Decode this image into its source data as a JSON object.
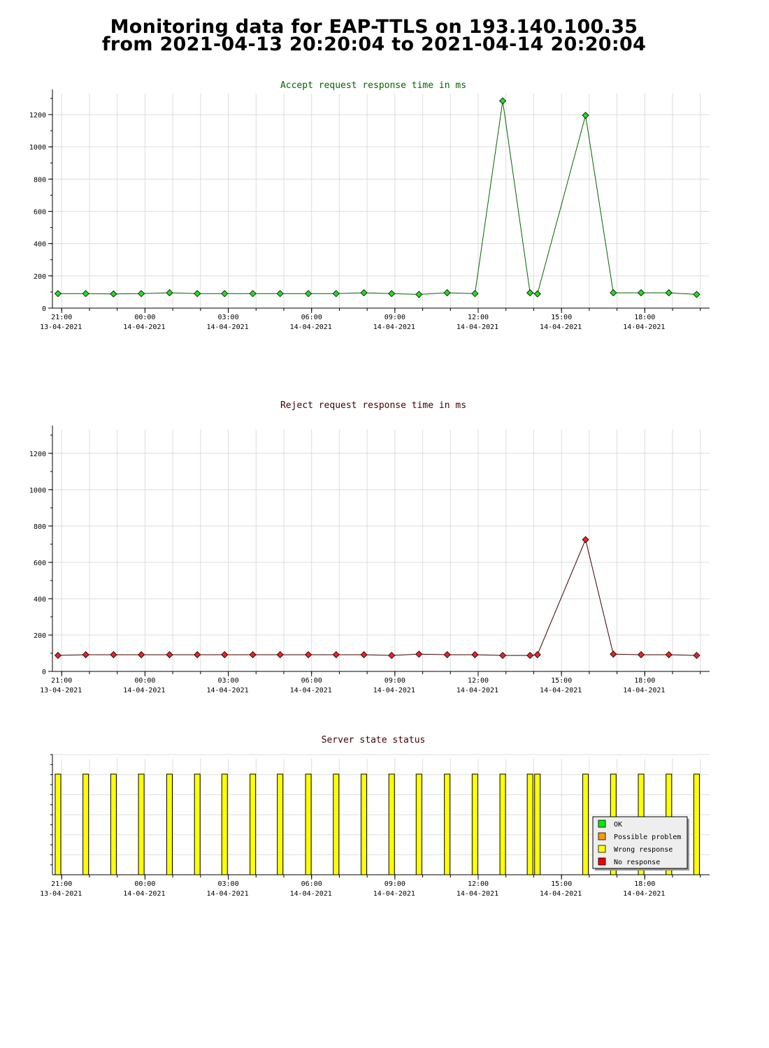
{
  "title": {
    "line1": "Monitoring data for EAP-TTLS on 193.140.100.35",
    "line2": "from 2021-04-13 20:20:04 to 2021-04-14 20:20:04"
  },
  "colors": {
    "accept_title": "#006400",
    "reject_title": "#400000",
    "status_title": "#400000",
    "accept_line": "#006400",
    "accept_marker": "#22dd22",
    "reject_line": "#400000",
    "reject_marker": "#ee2222",
    "grid": "#dddddd",
    "status_ok": "#00ee00",
    "status_possible": "#ff9900",
    "status_wrong": "#ffff00",
    "status_none": "#ee0000"
  },
  "x_ticks": [
    {
      "time": "21:00",
      "date": "13-04-2021"
    },
    {
      "time": "00:00",
      "date": "14-04-2021"
    },
    {
      "time": "03:00",
      "date": "14-04-2021"
    },
    {
      "time": "06:00",
      "date": "14-04-2021"
    },
    {
      "time": "09:00",
      "date": "14-04-2021"
    },
    {
      "time": "12:00",
      "date": "14-04-2021"
    },
    {
      "time": "15:00",
      "date": "14-04-2021"
    },
    {
      "time": "18:00",
      "date": "14-04-2021"
    }
  ],
  "chart_data": [
    {
      "type": "line",
      "title": "Accept request response time in ms",
      "x_range": [
        "2021-04-13 20:40",
        "2021-04-14 20:20"
      ],
      "ylim": [
        0,
        1330
      ],
      "y_ticks": [
        0,
        200,
        400,
        600,
        800,
        1000,
        1200
      ],
      "grid": true,
      "x": [
        "2021-04-13 20:52",
        "2021-04-13 21:52",
        "2021-04-13 22:52",
        "2021-04-13 23:52",
        "2021-04-14 00:53",
        "2021-04-14 01:53",
        "2021-04-14 02:52",
        "2021-04-14 03:53",
        "2021-04-14 04:52",
        "2021-04-14 05:53",
        "2021-04-14 06:53",
        "2021-04-14 07:53",
        "2021-04-14 08:53",
        "2021-04-14 09:52",
        "2021-04-14 10:53",
        "2021-04-14 11:53",
        "2021-04-14 12:53",
        "2021-04-14 13:52",
        "2021-04-14 14:08",
        "2021-04-14 15:52",
        "2021-04-14 16:52",
        "2021-04-14 17:52",
        "2021-04-14 18:52",
        "2021-04-14 19:52"
      ],
      "values": [
        90,
        90,
        88,
        90,
        95,
        90,
        90,
        90,
        90,
        90,
        90,
        95,
        90,
        85,
        95,
        90,
        1285,
        95,
        88,
        1195,
        95,
        95,
        95,
        85
      ]
    },
    {
      "type": "line",
      "title": "Reject request response time in ms",
      "x_range": [
        "2021-04-13 20:40",
        "2021-04-14 20:20"
      ],
      "ylim": [
        0,
        1330
      ],
      "y_ticks": [
        0,
        200,
        400,
        600,
        800,
        1000,
        1200
      ],
      "grid": true,
      "x": [
        "2021-04-13 20:52",
        "2021-04-13 21:52",
        "2021-04-13 22:52",
        "2021-04-13 23:52",
        "2021-04-14 00:53",
        "2021-04-14 01:53",
        "2021-04-14 02:52",
        "2021-04-14 03:53",
        "2021-04-14 04:52",
        "2021-04-14 05:53",
        "2021-04-14 06:53",
        "2021-04-14 07:53",
        "2021-04-14 08:53",
        "2021-04-14 09:52",
        "2021-04-14 10:53",
        "2021-04-14 11:53",
        "2021-04-14 12:53",
        "2021-04-14 13:52",
        "2021-04-14 14:08",
        "2021-04-14 15:52",
        "2021-04-14 16:52",
        "2021-04-14 17:52",
        "2021-04-14 18:52",
        "2021-04-14 19:52"
      ],
      "values": [
        88,
        92,
        92,
        92,
        92,
        92,
        92,
        92,
        92,
        92,
        92,
        92,
        88,
        95,
        92,
        92,
        88,
        88,
        92,
        725,
        95,
        92,
        92,
        88
      ]
    },
    {
      "type": "bar",
      "title": "Server state status",
      "x_range": [
        "2021-04-13 20:40",
        "2021-04-14 20:20"
      ],
      "grid": true,
      "legend_position": "bottom-right",
      "legend": [
        {
          "label": "OK",
          "color": "#00ee00"
        },
        {
          "label": "Possible problem",
          "color": "#ff9900"
        },
        {
          "label": "Wrong response",
          "color": "#ffff00"
        },
        {
          "label": "No response",
          "color": "#ee0000"
        }
      ],
      "x": [
        "2021-04-13 20:52",
        "2021-04-13 21:52",
        "2021-04-13 22:52",
        "2021-04-13 23:52",
        "2021-04-14 00:53",
        "2021-04-14 01:53",
        "2021-04-14 02:52",
        "2021-04-14 03:53",
        "2021-04-14 04:52",
        "2021-04-14 05:53",
        "2021-04-14 06:53",
        "2021-04-14 07:53",
        "2021-04-14 08:53",
        "2021-04-14 09:52",
        "2021-04-14 10:53",
        "2021-04-14 11:53",
        "2021-04-14 12:53",
        "2021-04-14 13:52",
        "2021-04-14 14:08",
        "2021-04-14 15:52",
        "2021-04-14 16:52",
        "2021-04-14 17:52",
        "2021-04-14 18:52",
        "2021-04-14 19:52"
      ],
      "values": [
        "Wrong response",
        "Wrong response",
        "Wrong response",
        "Wrong response",
        "Wrong response",
        "Wrong response",
        "Wrong response",
        "Wrong response",
        "Wrong response",
        "Wrong response",
        "Wrong response",
        "Wrong response",
        "Wrong response",
        "Wrong response",
        "Wrong response",
        "Wrong response",
        "Wrong response",
        "Wrong response",
        "Wrong response",
        "Wrong response",
        "Wrong response",
        "Wrong response",
        "Wrong response",
        "Wrong response"
      ],
      "last_bar_partial": true
    }
  ]
}
